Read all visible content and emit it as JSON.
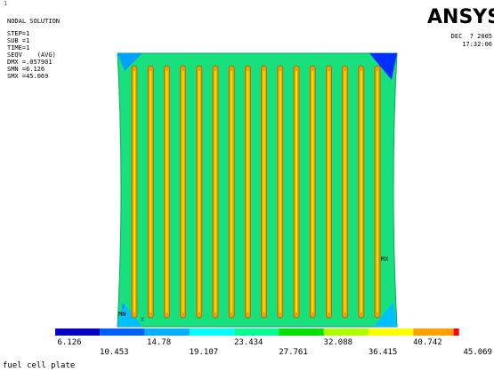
{
  "window_number": "1",
  "header": {
    "title": "NODAL SOLUTION",
    "lines": [
      "STEP=1",
      "SUB =1",
      "TIME=1",
      "SEQV    (AVG)",
      "DMX =.057901",
      "SMN =6.126",
      "SMX =45.069"
    ]
  },
  "logo": "ANSYS",
  "date": "DEC  7 2005",
  "time": "17:32:06",
  "markers": {
    "max": "MX",
    "min": "MN",
    "axis_x": "X",
    "axis_y": "Y"
  },
  "legend": {
    "labels": [
      "6.126",
      "10.453",
      "14.78",
      "19.107",
      "23.434",
      "27.761",
      "32.088",
      "36.415",
      "40.742",
      "45.069"
    ]
  },
  "caption": "fuel cell plate"
}
